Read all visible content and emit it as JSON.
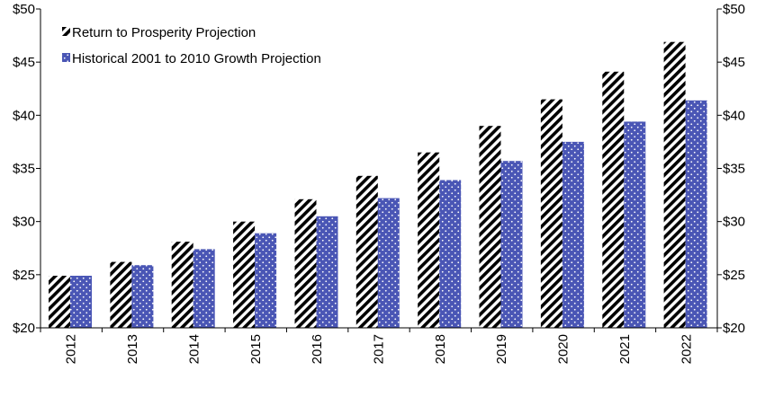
{
  "chart_data": {
    "type": "bar",
    "categories": [
      "2012",
      "2013",
      "2014",
      "2015",
      "2016",
      "2017",
      "2018",
      "2019",
      "2020",
      "2021",
      "2022"
    ],
    "series": [
      {
        "name": "Return to Prosperity Projection",
        "values": [
          24.9,
          26.2,
          28.1,
          30.0,
          32.1,
          34.3,
          36.5,
          39.0,
          41.5,
          44.1,
          46.9
        ],
        "pattern": "diagonal-hatch",
        "color": "#000000"
      },
      {
        "name": "Historical 2001 to 2010 Growth Projection",
        "values": [
          24.9,
          25.9,
          27.4,
          28.9,
          30.5,
          32.2,
          33.9,
          35.7,
          37.5,
          39.4,
          41.4
        ],
        "pattern": "dotted",
        "color": "#4A56B5"
      }
    ],
    "ylim": [
      20,
      50
    ],
    "y_ticks": [
      20,
      25,
      30,
      35,
      40,
      45,
      50
    ],
    "y_tick_labels": [
      "$20",
      "$25",
      "$30",
      "$35",
      "$40",
      "$45",
      "$50"
    ],
    "y_axis_both_sides": true,
    "legend_position": "top-left",
    "grid": false,
    "title": "",
    "xlabel": "",
    "ylabel": ""
  }
}
